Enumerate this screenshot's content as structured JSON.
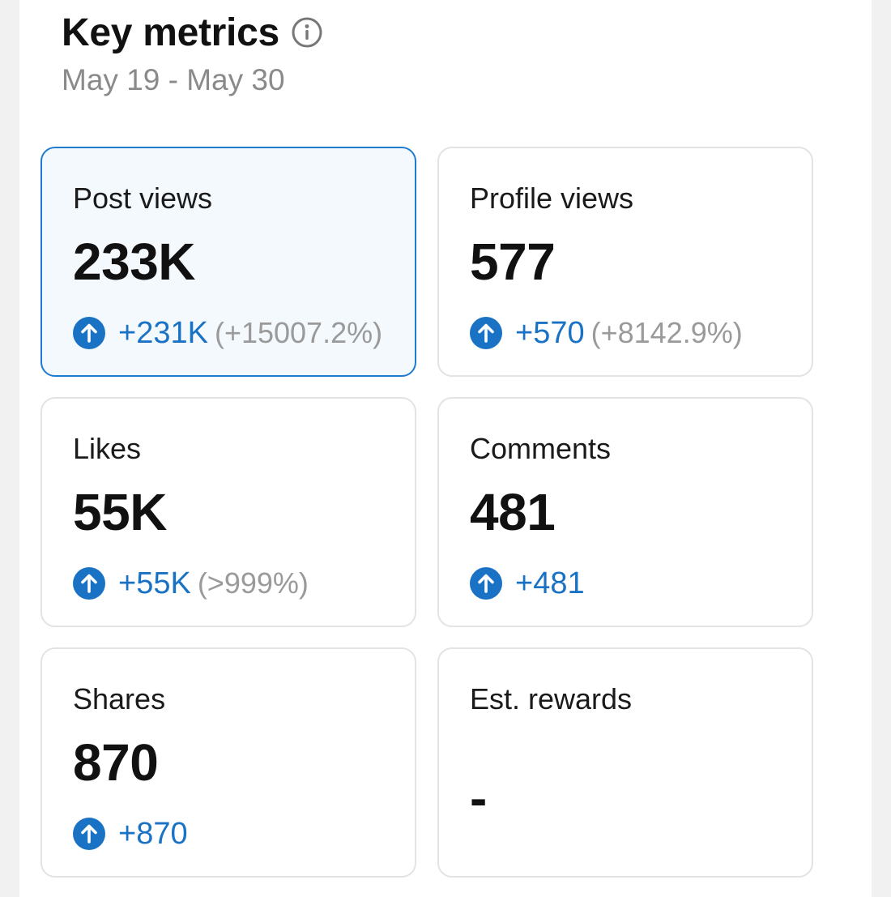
{
  "header": {
    "title": "Key metrics",
    "info_icon": "info-icon",
    "date_range": "May 19 - May 30"
  },
  "colors": {
    "accent": "#1a72c4",
    "selected_border": "#1f7bd0",
    "selected_bg": "#f4f9fe",
    "muted": "#9a9a9a"
  },
  "metrics": [
    {
      "label": "Post views",
      "value": "233K",
      "delta": "+231K",
      "pct": "(+15007.2%)",
      "icon": "arrow-up-circle-icon",
      "selected": true
    },
    {
      "label": "Profile views",
      "value": "577",
      "delta": "+570",
      "pct": "(+8142.9%)",
      "icon": "arrow-up-circle-icon",
      "selected": false
    },
    {
      "label": "Likes",
      "value": "55K",
      "delta": "+55K",
      "pct": "(>999%)",
      "icon": "arrow-up-circle-icon",
      "selected": false
    },
    {
      "label": "Comments",
      "value": "481",
      "delta": "+481",
      "pct": "",
      "icon": "arrow-up-circle-icon",
      "selected": false
    },
    {
      "label": "Shares",
      "value": "870",
      "delta": "+870",
      "pct": "",
      "icon": "arrow-up-circle-icon",
      "selected": false
    },
    {
      "label": "Est. rewards",
      "value": "-",
      "delta": "",
      "pct": "",
      "icon": "",
      "selected": false
    }
  ]
}
